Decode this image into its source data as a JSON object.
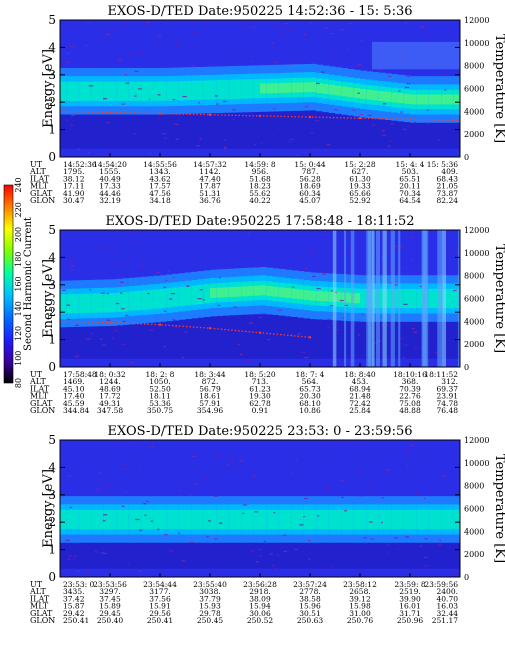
{
  "colorbar": {
    "label": "Second Harmonic Current",
    "ticks": [
      "80",
      "100",
      "120",
      "140",
      "160",
      "180",
      "200",
      "220",
      "240"
    ],
    "colors": [
      "#000000",
      "#3a00a0",
      "#2020ff",
      "#0070ff",
      "#00c0ff",
      "#00ffa0",
      "#80ff00",
      "#ffff00",
      "#ff8000",
      "#ff0000"
    ]
  },
  "panels": [
    {
      "title": "EXOS-D/TED   Date:950225  14:52:36 - 15: 5:36",
      "ylabel": "Energy [eV]",
      "y2label": "Temperature [K]",
      "yticks": [
        "0",
        "1",
        "2",
        "3",
        "4",
        "5"
      ],
      "y2ticks": [
        "0",
        "2000",
        "4000",
        "6000",
        "8000",
        "10000",
        "12000"
      ],
      "orbit_table": {
        "rows": [
          {
            "label": "UT",
            "values": [
              "14:52:36",
              "14:54:20",
              "14:55:56",
              "14:57:32",
              "14:59: 8",
              "15: 0:44",
              "15: 2:28",
              "15: 4: 4",
              "15: 5:36"
            ]
          },
          {
            "label": "ALT",
            "values": [
              "1795.",
              "1555.",
              "1343.",
              "1142.",
              "956.",
              "787.",
              "627.",
              "503.",
              "409."
            ]
          },
          {
            "label": "ILAT",
            "values": [
              "38.12",
              "40.49",
              "43.62",
              "47.40",
              "51.68",
              "56.28",
              "61.30",
              "65.51",
              "68.43"
            ]
          },
          {
            "label": "MLT",
            "values": [
              "17.11",
              "17.33",
              "17.57",
              "17.87",
              "18.23",
              "18.69",
              "19.33",
              "20.11",
              "21.05"
            ]
          },
          {
            "label": "GLAT",
            "values": [
              "41.90",
              "44.46",
              "47.56",
              "51.31",
              "55.62",
              "60.34",
              "65.66",
              "70.34",
              "73.87"
            ]
          },
          {
            "label": "GLON",
            "values": [
              "30.47",
              "32.19",
              "34.18",
              "36.76",
              "40.22",
              "45.07",
              "52.92",
              "64.54",
              "82.24"
            ]
          }
        ]
      }
    },
    {
      "title": "EXOS-D/TED   Date:950225  17:58:48 - 18:11:52",
      "ylabel": "Energy [eV]",
      "y2label": "Temperature [K]",
      "yticks": [
        "0",
        "1",
        "2",
        "3",
        "4",
        "5"
      ],
      "y2ticks": [
        "0",
        "2000",
        "4000",
        "6000",
        "8000",
        "10000",
        "12000"
      ],
      "orbit_table": {
        "rows": [
          {
            "label": "UT",
            "values": [
              "17:58:48",
              "18: 0:32",
              "18: 2: 8",
              "18: 3:44",
              "18: 5:20",
              "18: 7: 4",
              "18: 8:40",
              "18:10:16",
              "18:11:52"
            ]
          },
          {
            "label": "ALT",
            "values": [
              "1469.",
              "1244.",
              "1050.",
              "872.",
              "713.",
              "564.",
              "453.",
              "368.",
              "312."
            ]
          },
          {
            "label": "ILAT",
            "values": [
              "45.10",
              "48.69",
              "52.50",
              "56.79",
              "61.23",
              "65.73",
              "68.94",
              "70.39",
              "69.37"
            ]
          },
          {
            "label": "MLT",
            "values": [
              "17.40",
              "17.72",
              "18.11",
              "18.61",
              "19.30",
              "20.30",
              "21.48",
              "22.76",
              "23.91"
            ]
          },
          {
            "label": "GLAT",
            "values": [
              "45.59",
              "49.31",
              "53.36",
              "57.91",
              "62.78",
              "68.10",
              "72.42",
              "75.08",
              "74.78"
            ]
          },
          {
            "label": "GLON",
            "values": [
              "344.84",
              "347.58",
              "350.75",
              "354.96",
              "0.91",
              "10.86",
              "25.84",
              "48.88",
              "76.48"
            ]
          }
        ]
      }
    },
    {
      "title": "EXOS-D/TED   Date:950225  23:53: 0 - 23:59:56",
      "ylabel": "Energy [eV]",
      "y2label": "Temperature [K]",
      "yticks": [
        "0",
        "1",
        "2",
        "3",
        "4",
        "5"
      ],
      "y2ticks": [
        "0",
        "2000",
        "4000",
        "6000",
        "8000",
        "10000",
        "12000"
      ],
      "orbit_table": {
        "rows": [
          {
            "label": "UT",
            "values": [
              "23:53: 0",
              "23:53:56",
              "23:54:44",
              "23:55:40",
              "23:56:28",
              "23:57:24",
              "23:58:12",
              "23:59: 8",
              "23:59:56"
            ]
          },
          {
            "label": "ALT",
            "values": [
              "3435.",
              "3297.",
              "3177.",
              "3038.",
              "2918.",
              "2778.",
              "2658.",
              "2519.",
              "2400."
            ]
          },
          {
            "label": "ILAT",
            "values": [
              "37.42",
              "37.45",
              "37.56",
              "37.79",
              "38.09",
              "38.58",
              "39.12",
              "39.90",
              "40.70"
            ]
          },
          {
            "label": "MLT",
            "values": [
              "15.87",
              "15.89",
              "15.91",
              "15.93",
              "15.94",
              "15.96",
              "15.98",
              "16.01",
              "16.03"
            ]
          },
          {
            "label": "GLAT",
            "values": [
              "29.42",
              "29.45",
              "29.56",
              "29.78",
              "30.06",
              "30.51",
              "31.00",
              "31.71",
              "32.44"
            ]
          },
          {
            "label": "GLON",
            "values": [
              "250.41",
              "250.40",
              "250.41",
              "250.45",
              "250.52",
              "250.63",
              "250.76",
              "250.96",
              "251.17"
            ]
          }
        ]
      }
    }
  ],
  "chart_data": [
    {
      "type": "heatmap",
      "title": "EXOS-D/TED   Date:950225  14:52:36 - 15: 5:36",
      "ylabel": "Energy [eV]",
      "y2label": "Temperature [K]",
      "ylim": [
        0,
        5
      ],
      "y2lim": [
        0,
        12000
      ],
      "colorbar_label": "Second Harmonic Current",
      "colorbar_range": [
        80,
        240
      ],
      "x": [
        "14:52:36",
        "14:54:20",
        "14:55:56",
        "14:57:32",
        "14:59: 8",
        "15: 0:44",
        "15: 2:28",
        "15: 4: 4",
        "15: 5:36"
      ],
      "peak_energy_eV": [
        2.4,
        2.4,
        2.4,
        2.45,
        2.5,
        2.55,
        2.3,
        2.1,
        2.1
      ],
      "temperature_K": [
        4000,
        3900,
        3800,
        3700,
        3600,
        3500,
        3400,
        3300,
        3200
      ]
    },
    {
      "type": "heatmap",
      "title": "EXOS-D/TED   Date:950225  17:58:48 - 18:11:52",
      "ylabel": "Energy [eV]",
      "y2label": "Temperature [K]",
      "ylim": [
        0,
        5
      ],
      "y2lim": [
        0,
        12000
      ],
      "colorbar_label": "Second Harmonic Current",
      "colorbar_range": [
        80,
        240
      ],
      "x": [
        "17:58:48",
        "18: 0:32",
        "18: 2: 8",
        "18: 3:44",
        "18: 5:20",
        "18: 7: 4",
        "18: 8:40",
        "18:10:16",
        "18:11:52"
      ],
      "peak_energy_eV": [
        2.3,
        2.35,
        2.5,
        2.7,
        2.8,
        2.6,
        2.5,
        2.5,
        2.5
      ],
      "temperature_K": [
        4000,
        3900,
        3700,
        3400,
        3000,
        2600,
        null,
        null,
        null
      ]
    },
    {
      "type": "heatmap",
      "title": "EXOS-D/TED   Date:950225  23:53: 0 - 23:59:56",
      "ylabel": "Energy [eV]",
      "y2label": "Temperature [K]",
      "ylim": [
        0,
        5
      ],
      "y2lim": [
        0,
        12000
      ],
      "colorbar_label": "Second Harmonic Current",
      "colorbar_range": [
        80,
        240
      ],
      "x": [
        "23:53: 0",
        "23:53:56",
        "23:54:44",
        "23:55:40",
        "23:56:28",
        "23:57:24",
        "23:58:12",
        "23:59: 8",
        "23:59:56"
      ],
      "peak_energy_eV": [
        2.1,
        2.1,
        2.1,
        2.1,
        2.1,
        2.1,
        2.1,
        2.1,
        2.1
      ],
      "temperature_K": [
        null,
        null,
        null,
        null,
        null,
        null,
        null,
        null,
        null
      ]
    }
  ]
}
